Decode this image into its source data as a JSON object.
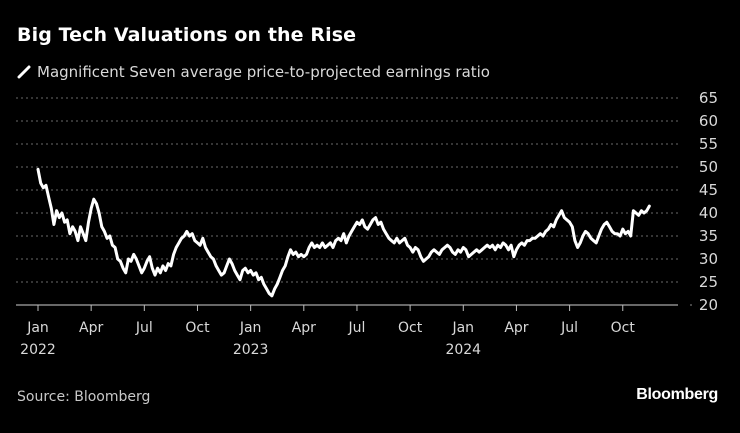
{
  "title": "Big Tech Valuations on the Rise",
  "legend": {
    "label": "Magnificent Seven average price-to-projected earnings ratio",
    "icon": "line-swatch-icon"
  },
  "source": "Source: Bloomberg",
  "brand": "Bloomberg",
  "colors": {
    "background": "#000000",
    "line": "#ffffff",
    "grid": "#6a6a6a",
    "axis": "#8a8a8a",
    "text": "#d9d9d9"
  },
  "chart_data": {
    "type": "line",
    "title": "Big Tech Valuations on the Rise",
    "subtitle": "Magnificent Seven average price-to-projected earnings ratio",
    "xlabel": "",
    "ylabel": "",
    "ylim": [
      20,
      65
    ],
    "yticks": [
      20,
      25,
      30,
      35,
      40,
      45,
      50,
      55,
      60,
      65
    ],
    "y_axis_side": "right",
    "grid": true,
    "legend_position": "top-left",
    "x_range_months": [
      0,
      35.5
    ],
    "xticks": [
      {
        "m": 0,
        "label": "Jan",
        "year": "2022"
      },
      {
        "m": 3,
        "label": "Apr",
        "year": ""
      },
      {
        "m": 6,
        "label": "Jul",
        "year": ""
      },
      {
        "m": 9,
        "label": "Oct",
        "year": ""
      },
      {
        "m": 12,
        "label": "Jan",
        "year": "2023"
      },
      {
        "m": 15,
        "label": "Apr",
        "year": ""
      },
      {
        "m": 18,
        "label": "Jul",
        "year": ""
      },
      {
        "m": 21,
        "label": "Oct",
        "year": ""
      },
      {
        "m": 24,
        "label": "Jan",
        "year": "2024"
      },
      {
        "m": 27,
        "label": "Apr",
        "year": ""
      },
      {
        "m": 30,
        "label": "Jul",
        "year": ""
      },
      {
        "m": 33,
        "label": "Oct",
        "year": ""
      }
    ],
    "series": [
      {
        "name": "Magnificent Seven average price-to-projected earnings ratio",
        "x_unit": "months since Jan 2022",
        "points": [
          [
            0.0,
            49.5
          ],
          [
            0.15,
            46.5
          ],
          [
            0.3,
            45.5
          ],
          [
            0.45,
            46.0
          ],
          [
            0.6,
            43.5
          ],
          [
            0.75,
            41.0
          ],
          [
            0.9,
            37.5
          ],
          [
            1.05,
            40.5
          ],
          [
            1.2,
            39.0
          ],
          [
            1.35,
            40.0
          ],
          [
            1.5,
            38.0
          ],
          [
            1.65,
            38.5
          ],
          [
            1.8,
            35.5
          ],
          [
            1.95,
            37.0
          ],
          [
            2.1,
            36.0
          ],
          [
            2.25,
            34.0
          ],
          [
            2.4,
            37.0
          ],
          [
            2.55,
            35.5
          ],
          [
            2.7,
            34.0
          ],
          [
            2.85,
            38.0
          ],
          [
            3.0,
            41.0
          ],
          [
            3.15,
            43.0
          ],
          [
            3.3,
            42.0
          ],
          [
            3.45,
            40.0
          ],
          [
            3.6,
            37.0
          ],
          [
            3.75,
            36.0
          ],
          [
            3.9,
            34.5
          ],
          [
            4.05,
            35.0
          ],
          [
            4.2,
            33.0
          ],
          [
            4.35,
            32.5
          ],
          [
            4.5,
            30.0
          ],
          [
            4.65,
            29.5
          ],
          [
            4.8,
            28.0
          ],
          [
            4.95,
            27.0
          ],
          [
            5.1,
            30.0
          ],
          [
            5.25,
            29.5
          ],
          [
            5.4,
            31.0
          ],
          [
            5.55,
            30.0
          ],
          [
            5.7,
            28.5
          ],
          [
            5.85,
            27.0
          ],
          [
            6.0,
            28.0
          ],
          [
            6.15,
            29.5
          ],
          [
            6.3,
            30.5
          ],
          [
            6.45,
            28.0
          ],
          [
            6.6,
            26.5
          ],
          [
            6.75,
            28.0
          ],
          [
            6.9,
            27.0
          ],
          [
            7.05,
            28.5
          ],
          [
            7.2,
            27.5
          ],
          [
            7.35,
            29.0
          ],
          [
            7.5,
            28.5
          ],
          [
            7.65,
            31.0
          ],
          [
            7.8,
            32.5
          ],
          [
            7.95,
            33.5
          ],
          [
            8.1,
            34.5
          ],
          [
            8.25,
            35.0
          ],
          [
            8.4,
            36.0
          ],
          [
            8.55,
            35.0
          ],
          [
            8.7,
            35.5
          ],
          [
            8.85,
            34.0
          ],
          [
            9.0,
            33.5
          ],
          [
            9.15,
            33.0
          ],
          [
            9.3,
            34.5
          ],
          [
            9.45,
            32.5
          ],
          [
            9.6,
            31.5
          ],
          [
            9.75,
            30.5
          ],
          [
            9.9,
            30.0
          ],
          [
            10.05,
            28.5
          ],
          [
            10.2,
            27.5
          ],
          [
            10.35,
            26.5
          ],
          [
            10.5,
            27.0
          ],
          [
            10.65,
            28.5
          ],
          [
            10.8,
            30.0
          ],
          [
            10.95,
            29.0
          ],
          [
            11.1,
            27.5
          ],
          [
            11.25,
            26.5
          ],
          [
            11.4,
            25.5
          ],
          [
            11.55,
            27.5
          ],
          [
            11.7,
            28.0
          ],
          [
            11.85,
            27.0
          ],
          [
            12.0,
            27.5
          ],
          [
            12.15,
            26.5
          ],
          [
            12.3,
            27.0
          ],
          [
            12.45,
            25.5
          ],
          [
            12.6,
            26.0
          ],
          [
            12.75,
            24.5
          ],
          [
            12.9,
            23.5
          ],
          [
            13.05,
            22.5
          ],
          [
            13.2,
            22.0
          ],
          [
            13.35,
            23.5
          ],
          [
            13.5,
            24.5
          ],
          [
            13.65,
            26.0
          ],
          [
            13.8,
            27.5
          ],
          [
            13.95,
            28.5
          ],
          [
            14.1,
            30.5
          ],
          [
            14.25,
            32.0
          ],
          [
            14.4,
            31.0
          ],
          [
            14.55,
            31.5
          ],
          [
            14.7,
            30.5
          ],
          [
            14.85,
            31.0
          ],
          [
            15.0,
            30.5
          ],
          [
            15.15,
            31.0
          ],
          [
            15.3,
            32.5
          ],
          [
            15.45,
            33.5
          ],
          [
            15.6,
            32.5
          ],
          [
            15.75,
            33.0
          ],
          [
            15.9,
            32.5
          ],
          [
            16.05,
            33.5
          ],
          [
            16.2,
            32.5
          ],
          [
            16.35,
            33.0
          ],
          [
            16.5,
            33.5
          ],
          [
            16.65,
            32.5
          ],
          [
            16.8,
            34.0
          ],
          [
            16.95,
            34.5
          ],
          [
            17.1,
            34.0
          ],
          [
            17.25,
            35.5
          ],
          [
            17.4,
            33.5
          ],
          [
            17.55,
            35.0
          ],
          [
            17.7,
            36.0
          ],
          [
            17.85,
            37.0
          ],
          [
            18.0,
            38.0
          ],
          [
            18.15,
            37.5
          ],
          [
            18.3,
            38.5
          ],
          [
            18.45,
            37.0
          ],
          [
            18.6,
            36.5
          ],
          [
            18.75,
            37.5
          ],
          [
            18.9,
            38.5
          ],
          [
            19.05,
            39.0
          ],
          [
            19.2,
            37.5
          ],
          [
            19.35,
            38.0
          ],
          [
            19.5,
            36.5
          ],
          [
            19.65,
            35.5
          ],
          [
            19.8,
            34.5
          ],
          [
            19.95,
            34.0
          ],
          [
            20.1,
            33.5
          ],
          [
            20.25,
            34.5
          ],
          [
            20.4,
            33.5
          ],
          [
            20.55,
            34.0
          ],
          [
            20.7,
            34.5
          ],
          [
            20.85,
            33.0
          ],
          [
            21.0,
            32.5
          ],
          [
            21.15,
            31.5
          ],
          [
            21.3,
            32.5
          ],
          [
            21.45,
            32.0
          ],
          [
            21.6,
            30.5
          ],
          [
            21.75,
            29.5
          ],
          [
            21.9,
            30.0
          ],
          [
            22.05,
            30.5
          ],
          [
            22.2,
            31.5
          ],
          [
            22.35,
            32.0
          ],
          [
            22.5,
            31.5
          ],
          [
            22.65,
            31.0
          ],
          [
            22.8,
            32.0
          ],
          [
            22.95,
            32.5
          ],
          [
            23.1,
            33.0
          ],
          [
            23.25,
            32.5
          ],
          [
            23.4,
            31.5
          ],
          [
            23.55,
            31.0
          ],
          [
            23.7,
            32.0
          ],
          [
            23.85,
            31.5
          ],
          [
            24.0,
            32.5
          ],
          [
            24.15,
            32.0
          ],
          [
            24.3,
            30.5
          ],
          [
            24.45,
            31.0
          ],
          [
            24.6,
            31.5
          ],
          [
            24.75,
            32.0
          ],
          [
            24.9,
            31.5
          ],
          [
            25.05,
            32.0
          ],
          [
            25.2,
            32.5
          ],
          [
            25.35,
            33.0
          ],
          [
            25.5,
            32.5
          ],
          [
            25.65,
            33.0
          ],
          [
            25.8,
            32.0
          ],
          [
            25.95,
            33.0
          ],
          [
            26.1,
            32.5
          ],
          [
            26.25,
            33.5
          ],
          [
            26.4,
            33.0
          ],
          [
            26.55,
            32.0
          ],
          [
            26.7,
            33.0
          ],
          [
            26.85,
            30.5
          ],
          [
            27.0,
            32.0
          ],
          [
            27.15,
            33.0
          ],
          [
            27.3,
            33.5
          ],
          [
            27.45,
            33.0
          ],
          [
            27.6,
            34.0
          ],
          [
            27.75,
            34.0
          ],
          [
            27.9,
            34.5
          ],
          [
            28.05,
            34.5
          ],
          [
            28.2,
            35.0
          ],
          [
            28.35,
            35.5
          ],
          [
            28.5,
            35.0
          ],
          [
            28.65,
            36.0
          ],
          [
            28.8,
            36.5
          ],
          [
            28.95,
            37.5
          ],
          [
            29.1,
            37.0
          ],
          [
            29.25,
            38.5
          ],
          [
            29.4,
            39.5
          ],
          [
            29.55,
            40.5
          ],
          [
            29.7,
            39.0
          ],
          [
            29.85,
            38.5
          ],
          [
            30.0,
            38.0
          ],
          [
            30.15,
            37.0
          ],
          [
            30.3,
            34.0
          ],
          [
            30.45,
            32.5
          ],
          [
            30.6,
            33.5
          ],
          [
            30.75,
            35.0
          ],
          [
            30.9,
            36.0
          ],
          [
            31.05,
            35.5
          ],
          [
            31.2,
            34.5
          ],
          [
            31.35,
            34.0
          ],
          [
            31.5,
            33.5
          ],
          [
            31.65,
            35.0
          ],
          [
            31.8,
            36.5
          ],
          [
            31.95,
            37.5
          ],
          [
            32.1,
            38.0
          ],
          [
            32.25,
            37.0
          ],
          [
            32.4,
            36.0
          ],
          [
            32.55,
            35.5
          ],
          [
            32.7,
            35.5
          ],
          [
            32.85,
            35.0
          ],
          [
            33.0,
            36.5
          ],
          [
            33.15,
            35.5
          ],
          [
            33.3,
            36.0
          ],
          [
            33.45,
            35.0
          ],
          [
            33.6,
            40.5
          ],
          [
            33.75,
            40.0
          ],
          [
            33.9,
            39.5
          ],
          [
            34.05,
            40.5
          ],
          [
            34.2,
            40.0
          ],
          [
            34.35,
            40.5
          ],
          [
            34.5,
            41.5
          ]
        ]
      }
    ]
  }
}
